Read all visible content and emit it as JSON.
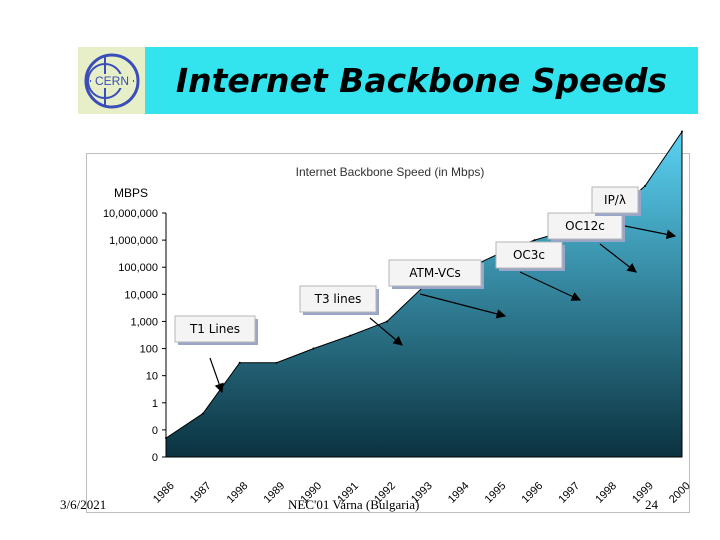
{
  "slide": {
    "title": "Internet Backbone Speeds",
    "logo_text": "CERN",
    "footer_date": "3/6/2021",
    "footer_center": "NEC'01 Varna (Bulgaria)",
    "footer_page": "24"
  },
  "colors": {
    "title_bg": "#33e3ee",
    "logo_bg": "#e7efc8",
    "area_top": "#5ad2f3",
    "area_bottom": "#0b3240"
  },
  "chart_data": {
    "type": "area",
    "title": "Internet Backbone Speed (in Mbps)",
    "ylabel": "MBPS",
    "yscale": "log",
    "yticks": [
      "0",
      "0",
      "1",
      "10",
      "100",
      "1,000",
      "10,000",
      "100,000",
      "1,000,000",
      "10,000,000"
    ],
    "categories": [
      "1986",
      "1987",
      "1998",
      "1989",
      "1990",
      "1991",
      "1992",
      "1993",
      "1994",
      "1995",
      "1996",
      "1997",
      "1998",
      "1999",
      "2000"
    ],
    "values": [
      0.05,
      0.4,
      30,
      30,
      100,
      300,
      1000,
      20000,
      70000,
      300000,
      1000000,
      2500000,
      6000000,
      100000000,
      10000000000
    ],
    "grid": false,
    "annotations": [
      {
        "label": "T1 Lines",
        "points_to": "1987"
      },
      {
        "label": "T3 lines",
        "points_to": "1992"
      },
      {
        "label": "ATM-VCs",
        "points_to": "1994"
      },
      {
        "label": "OC3c",
        "points_to": "1997"
      },
      {
        "label": "OC12c",
        "points_to": "1999"
      },
      {
        "label": "IP/λ",
        "points_to": "2000"
      }
    ]
  }
}
